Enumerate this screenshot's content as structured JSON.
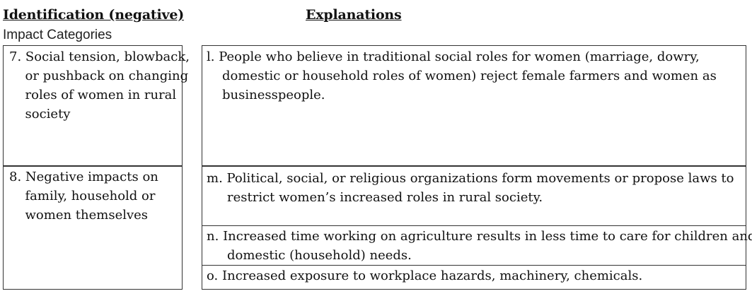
{
  "headers": {
    "left": "Identification (negative)",
    "right": "Explanations",
    "subheading": "Impact Categories"
  },
  "categories": [
    {
      "text": "7. Social tension, blowback, or pushback on changing roles of women in rural society"
    },
    {
      "text": "8. Negative impacts on family, household or women themselves"
    }
  ],
  "explanations": [
    {
      "label": "l.",
      "text": "People who believe in traditional social roles for women (marriage, dowry, domestic or household roles of women) reject female farmers and women as businesspeople."
    },
    {
      "label": "m.",
      "text": "Political, social, or religious organizations form movements or propose laws to restrict women’s increased roles in rural society."
    },
    {
      "label": "n.",
      "text": "Increased time working on agriculture results in less time to care for children and domestic (household) needs."
    },
    {
      "label": "o.",
      "text": "Increased exposure to workplace hazards, machinery, chemicals."
    }
  ]
}
